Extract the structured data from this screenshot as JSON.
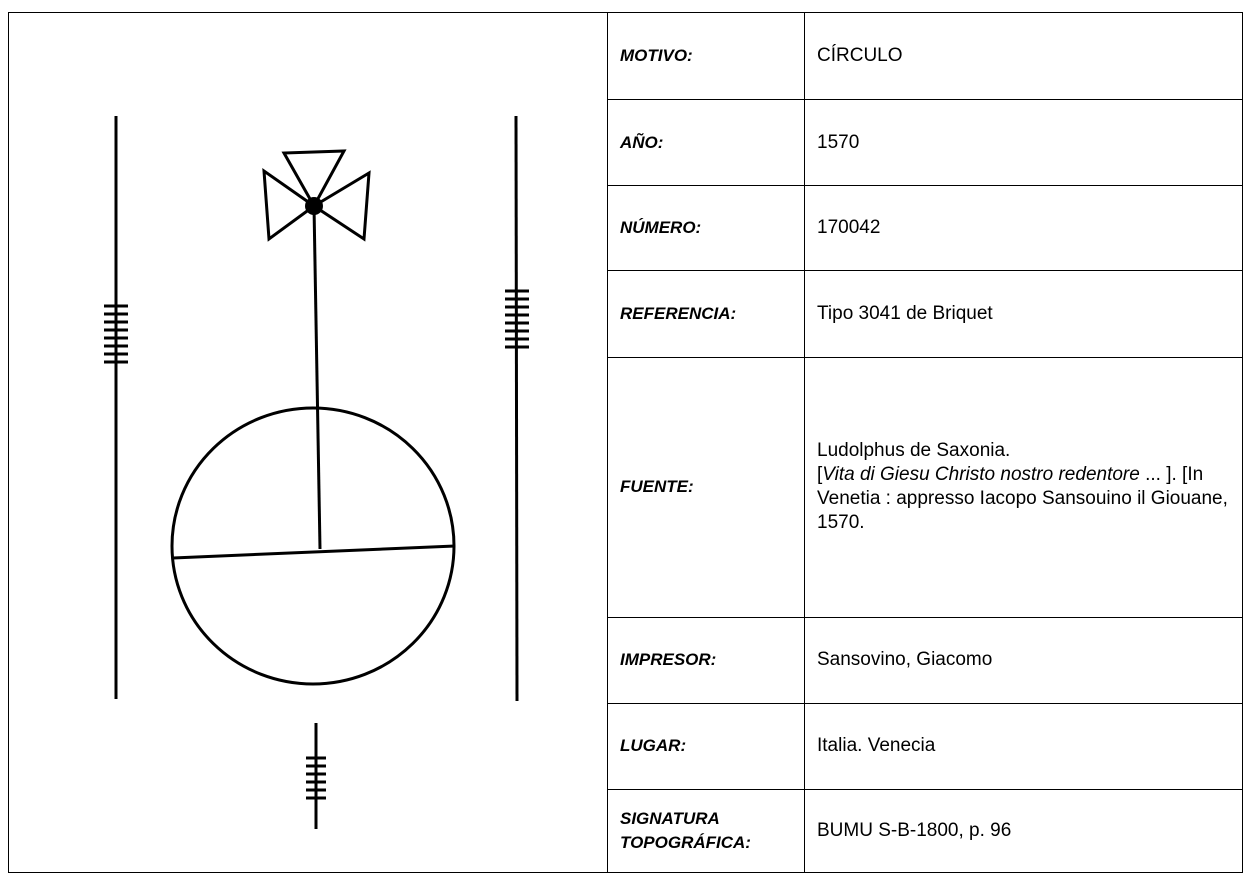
{
  "table": {
    "rows": [
      {
        "label": "MOTIVO:",
        "value": "CÍRCULO"
      },
      {
        "label": "AÑO:",
        "value": "1570"
      },
      {
        "label": "NÚMERO:",
        "value": "170042"
      },
      {
        "label": "REFERENCIA:",
        "value": "Tipo 3041 de Briquet"
      },
      {
        "label": "FUENTE:",
        "value": [
          "Ludolphus de Saxonia.",
          "[",
          "Vita di Giesu Christo nostro redentore",
          " ... ]. [In Venetia : appresso Iacopo Sansouino il Giouane, 1570."
        ]
      },
      {
        "label": "IMPRESOR:",
        "value": "Sansovino, Giacomo"
      },
      {
        "label": "LUGAR:",
        "value": "Italia. Venecia"
      },
      {
        "label": "SIGNATURA TOPOGRÁFICA:",
        "value": "BUMU S-B-1800, p. 96"
      }
    ]
  }
}
